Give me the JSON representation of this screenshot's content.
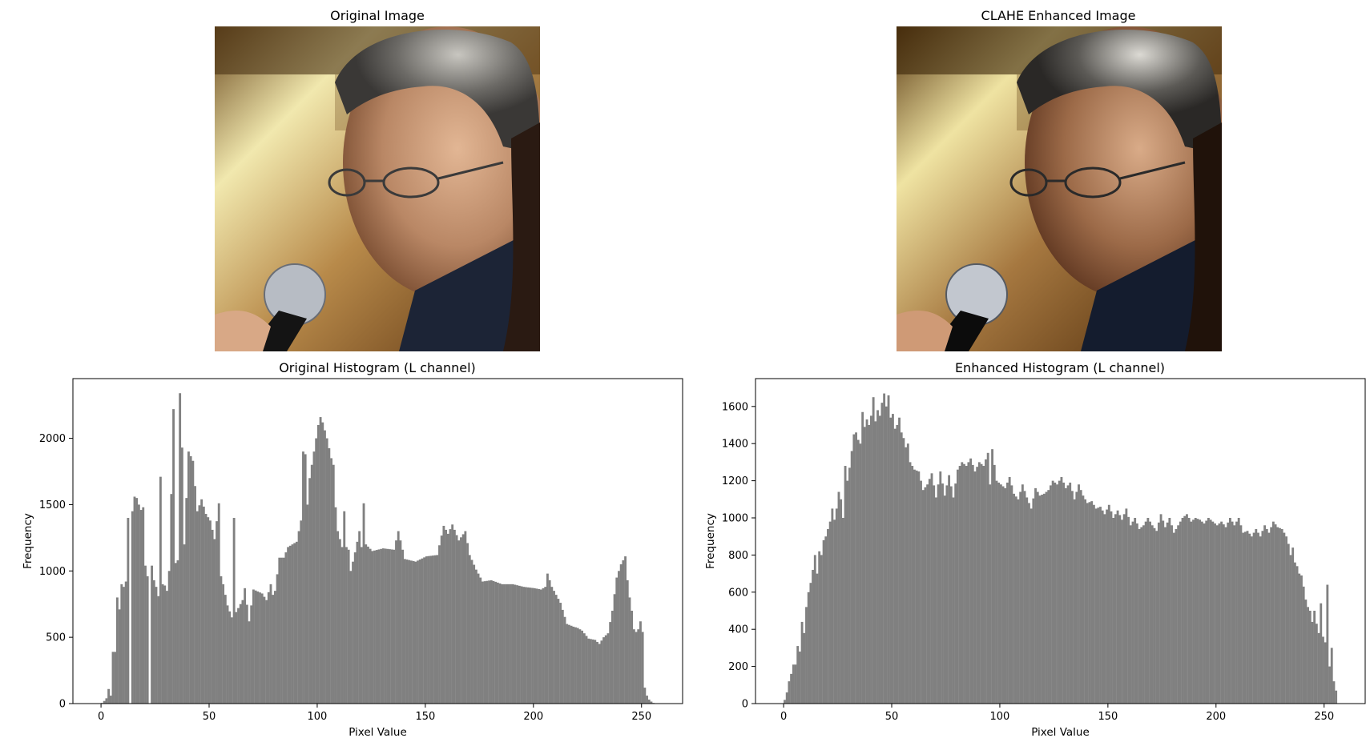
{
  "panels": {
    "original_image": {
      "title": "Original Image",
      "icon": "portrait-photo-icon"
    },
    "enhanced_image": {
      "title": "CLAHE Enhanced Image",
      "icon": "portrait-photo-icon"
    }
  },
  "colors": {
    "bar": "#808080",
    "axis": "#000000",
    "background": "#ffffff"
  },
  "chart_data": [
    {
      "type": "bar",
      "title": "Original Histogram (L channel)",
      "xlabel": "Pixel Value",
      "ylabel": "Frequency",
      "xlim": [
        -13,
        269
      ],
      "ylim": [
        0,
        2450
      ],
      "xticks": [
        0,
        50,
        100,
        150,
        200,
        250
      ],
      "yticks": [
        0,
        500,
        1000,
        1500,
        2000
      ],
      "grid": false,
      "bin_width": 1,
      "keypoints": [
        [
          0,
          5
        ],
        [
          1,
          20
        ],
        [
          2,
          40
        ],
        [
          3,
          110
        ],
        [
          4,
          60
        ],
        [
          5,
          390
        ],
        [
          6,
          390
        ],
        [
          7,
          800
        ],
        [
          8,
          710
        ],
        [
          9,
          900
        ],
        [
          10,
          880
        ],
        [
          11,
          920
        ],
        [
          12,
          1400
        ],
        [
          13,
          0
        ],
        [
          14,
          1450
        ],
        [
          15,
          1560
        ],
        [
          16,
          1550
        ],
        [
          17,
          1500
        ],
        [
          18,
          1460
        ],
        [
          19,
          1480
        ],
        [
          20,
          1040
        ],
        [
          21,
          960
        ],
        [
          22,
          0
        ],
        [
          23,
          1040
        ],
        [
          24,
          930
        ],
        [
          25,
          880
        ],
        [
          26,
          810
        ],
        [
          27,
          1710
        ],
        [
          28,
          900
        ],
        [
          29,
          890
        ],
        [
          30,
          850
        ],
        [
          31,
          1000
        ],
        [
          32,
          1580
        ],
        [
          33,
          2220
        ],
        [
          34,
          1060
        ],
        [
          35,
          1080
        ],
        [
          36,
          2340
        ],
        [
          37,
          1930
        ],
        [
          38,
          1200
        ],
        [
          40,
          1900
        ],
        [
          42,
          1830
        ],
        [
          44,
          1450
        ],
        [
          46,
          1540
        ],
        [
          48,
          1430
        ],
        [
          50,
          1380
        ],
        [
          52,
          1240
        ],
        [
          54,
          1510
        ],
        [
          55,
          960
        ],
        [
          56,
          900
        ],
        [
          58,
          740
        ],
        [
          60,
          650
        ],
        [
          61,
          1400
        ],
        [
          62,
          690
        ],
        [
          65,
          780
        ],
        [
          66,
          870
        ],
        [
          68,
          620
        ],
        [
          70,
          860
        ],
        [
          74,
          830
        ],
        [
          76,
          780
        ],
        [
          78,
          900
        ],
        [
          79,
          820
        ],
        [
          80,
          850
        ],
        [
          82,
          1100
        ],
        [
          84,
          1100
        ],
        [
          86,
          1180
        ],
        [
          88,
          1200
        ],
        [
          90,
          1220
        ],
        [
          92,
          1380
        ],
        [
          93,
          1900
        ],
        [
          94,
          1880
        ],
        [
          95,
          1500
        ],
        [
          96,
          1700
        ],
        [
          98,
          1900
        ],
        [
          100,
          2100
        ],
        [
          101,
          2160
        ],
        [
          102,
          2120
        ],
        [
          104,
          2000
        ],
        [
          106,
          1850
        ],
        [
          107,
          1800
        ],
        [
          108,
          1480
        ],
        [
          109,
          1300
        ],
        [
          111,
          1180
        ],
        [
          112,
          1450
        ],
        [
          113,
          1180
        ],
        [
          114,
          1160
        ],
        [
          115,
          1000
        ],
        [
          117,
          1140
        ],
        [
          119,
          1300
        ],
        [
          120,
          1180
        ],
        [
          121,
          1510
        ],
        [
          122,
          1200
        ],
        [
          125,
          1150
        ],
        [
          130,
          1170
        ],
        [
          135,
          1160
        ],
        [
          137,
          1300
        ],
        [
          140,
          1090
        ],
        [
          145,
          1070
        ],
        [
          150,
          1110
        ],
        [
          155,
          1120
        ],
        [
          158,
          1340
        ],
        [
          160,
          1280
        ],
        [
          162,
          1350
        ],
        [
          165,
          1230
        ],
        [
          168,
          1300
        ],
        [
          170,
          1120
        ],
        [
          173,
          1010
        ],
        [
          176,
          920
        ],
        [
          180,
          930
        ],
        [
          185,
          900
        ],
        [
          190,
          900
        ],
        [
          195,
          880
        ],
        [
          200,
          870
        ],
        [
          203,
          860
        ],
        [
          205,
          880
        ],
        [
          206,
          980
        ],
        [
          208,
          880
        ],
        [
          210,
          820
        ],
        [
          212,
          760
        ],
        [
          215,
          600
        ],
        [
          218,
          580
        ],
        [
          220,
          570
        ],
        [
          222,
          550
        ],
        [
          225,
          490
        ],
        [
          228,
          480
        ],
        [
          230,
          450
        ],
        [
          232,
          500
        ],
        [
          234,
          530
        ],
        [
          236,
          700
        ],
        [
          238,
          950
        ],
        [
          240,
          1050
        ],
        [
          241,
          1080
        ],
        [
          242,
          1110
        ],
        [
          243,
          930
        ],
        [
          244,
          800
        ],
        [
          245,
          700
        ],
        [
          246,
          560
        ],
        [
          247,
          540
        ],
        [
          248,
          560
        ],
        [
          249,
          620
        ],
        [
          250,
          540
        ],
        [
          251,
          120
        ],
        [
          252,
          60
        ],
        [
          253,
          30
        ],
        [
          254,
          15
        ],
        [
          255,
          5
        ]
      ]
    },
    {
      "type": "bar",
      "title": "Enhanced Histogram (L channel)",
      "xlabel": "Pixel Value",
      "ylabel": "Frequency",
      "xlim": [
        -13,
        269
      ],
      "ylim": [
        0,
        1750
      ],
      "xticks": [
        0,
        50,
        100,
        150,
        200,
        250
      ],
      "yticks": [
        0,
        200,
        400,
        600,
        800,
        1000,
        1200,
        1400,
        1600
      ],
      "grid": false,
      "bin_width": 1,
      "keypoints": [
        [
          0,
          20
        ],
        [
          1,
          60
        ],
        [
          2,
          120
        ],
        [
          3,
          160
        ],
        [
          4,
          210
        ],
        [
          5,
          210
        ],
        [
          6,
          310
        ],
        [
          7,
          280
        ],
        [
          8,
          440
        ],
        [
          9,
          380
        ],
        [
          10,
          520
        ],
        [
          11,
          600
        ],
        [
          12,
          650
        ],
        [
          13,
          720
        ],
        [
          14,
          800
        ],
        [
          15,
          700
        ],
        [
          16,
          820
        ],
        [
          17,
          800
        ],
        [
          18,
          880
        ],
        [
          19,
          900
        ],
        [
          20,
          940
        ],
        [
          21,
          980
        ],
        [
          22,
          1050
        ],
        [
          23,
          990
        ],
        [
          24,
          1050
        ],
        [
          25,
          1140
        ],
        [
          26,
          1100
        ],
        [
          27,
          1000
        ],
        [
          28,
          1280
        ],
        [
          29,
          1200
        ],
        [
          30,
          1270
        ],
        [
          31,
          1360
        ],
        [
          32,
          1450
        ],
        [
          33,
          1460
        ],
        [
          34,
          1420
        ],
        [
          35,
          1400
        ],
        [
          36,
          1570
        ],
        [
          37,
          1490
        ],
        [
          38,
          1530
        ],
        [
          39,
          1500
        ],
        [
          40,
          1550
        ],
        [
          41,
          1650
        ],
        [
          42,
          1520
        ],
        [
          43,
          1580
        ],
        [
          44,
          1550
        ],
        [
          45,
          1620
        ],
        [
          46,
          1670
        ],
        [
          47,
          1600
        ],
        [
          48,
          1660
        ],
        [
          49,
          1540
        ],
        [
          50,
          1560
        ],
        [
          51,
          1480
        ],
        [
          52,
          1500
        ],
        [
          53,
          1540
        ],
        [
          54,
          1460
        ],
        [
          55,
          1430
        ],
        [
          56,
          1380
        ],
        [
          57,
          1400
        ],
        [
          58,
          1300
        ],
        [
          59,
          1280
        ],
        [
          60,
          1260
        ],
        [
          62,
          1250
        ],
        [
          64,
          1150
        ],
        [
          66,
          1180
        ],
        [
          68,
          1240
        ],
        [
          70,
          1110
        ],
        [
          72,
          1250
        ],
        [
          74,
          1120
        ],
        [
          76,
          1230
        ],
        [
          78,
          1110
        ],
        [
          80,
          1260
        ],
        [
          82,
          1300
        ],
        [
          84,
          1280
        ],
        [
          86,
          1320
        ],
        [
          88,
          1250
        ],
        [
          90,
          1300
        ],
        [
          92,
          1280
        ],
        [
          94,
          1350
        ],
        [
          95,
          1180
        ],
        [
          96,
          1370
        ],
        [
          98,
          1200
        ],
        [
          100,
          1180
        ],
        [
          102,
          1160
        ],
        [
          104,
          1220
        ],
        [
          106,
          1130
        ],
        [
          108,
          1100
        ],
        [
          110,
          1180
        ],
        [
          112,
          1110
        ],
        [
          114,
          1050
        ],
        [
          116,
          1160
        ],
        [
          118,
          1120
        ],
        [
          120,
          1130
        ],
        [
          122,
          1150
        ],
        [
          124,
          1200
        ],
        [
          126,
          1180
        ],
        [
          128,
          1220
        ],
        [
          130,
          1160
        ],
        [
          132,
          1190
        ],
        [
          134,
          1100
        ],
        [
          136,
          1180
        ],
        [
          138,
          1120
        ],
        [
          140,
          1080
        ],
        [
          142,
          1090
        ],
        [
          144,
          1050
        ],
        [
          146,
          1060
        ],
        [
          148,
          1020
        ],
        [
          150,
          1070
        ],
        [
          152,
          1000
        ],
        [
          154,
          1040
        ],
        [
          156,
          990
        ],
        [
          158,
          1050
        ],
        [
          160,
          960
        ],
        [
          162,
          1000
        ],
        [
          164,
          940
        ],
        [
          166,
          960
        ],
        [
          168,
          1000
        ],
        [
          170,
          960
        ],
        [
          172,
          930
        ],
        [
          174,
          1020
        ],
        [
          176,
          950
        ],
        [
          178,
          1000
        ],
        [
          180,
          920
        ],
        [
          182,
          960
        ],
        [
          184,
          1000
        ],
        [
          186,
          1020
        ],
        [
          188,
          980
        ],
        [
          190,
          1000
        ],
        [
          192,
          990
        ],
        [
          194,
          970
        ],
        [
          196,
          1000
        ],
        [
          198,
          980
        ],
        [
          200,
          960
        ],
        [
          202,
          980
        ],
        [
          204,
          950
        ],
        [
          206,
          1000
        ],
        [
          208,
          960
        ],
        [
          210,
          1000
        ],
        [
          212,
          920
        ],
        [
          214,
          930
        ],
        [
          216,
          900
        ],
        [
          218,
          940
        ],
        [
          220,
          900
        ],
        [
          222,
          960
        ],
        [
          224,
          920
        ],
        [
          226,
          980
        ],
        [
          228,
          950
        ],
        [
          230,
          940
        ],
        [
          232,
          900
        ],
        [
          233,
          860
        ],
        [
          234,
          800
        ],
        [
          235,
          840
        ],
        [
          236,
          760
        ],
        [
          237,
          740
        ],
        [
          238,
          700
        ],
        [
          239,
          690
        ],
        [
          240,
          630
        ],
        [
          241,
          560
        ],
        [
          242,
          520
        ],
        [
          243,
          500
        ],
        [
          244,
          440
        ],
        [
          245,
          500
        ],
        [
          246,
          430
        ],
        [
          247,
          380
        ],
        [
          248,
          540
        ],
        [
          249,
          360
        ],
        [
          250,
          330
        ],
        [
          251,
          640
        ],
        [
          252,
          200
        ],
        [
          253,
          300
        ],
        [
          254,
          120
        ],
        [
          255,
          70
        ]
      ]
    }
  ]
}
